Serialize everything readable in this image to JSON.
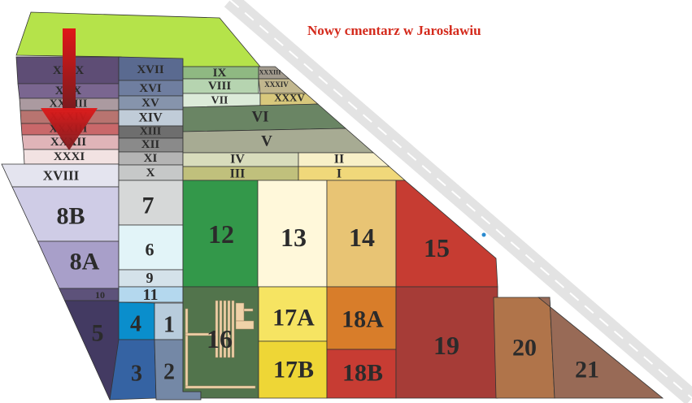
{
  "title": "Nowy cmentarz w Jarosławiu",
  "road_color": "#e3e3e3",
  "arrow_color": "#c41a1a",
  "top_field_color": "#b5e34a",
  "parcels": [
    {
      "id": "XXIX",
      "label": "XXIX",
      "color": "#5e4d75"
    },
    {
      "id": "XXX",
      "label": "XXX",
      "color": "#7a6690"
    },
    {
      "id": "XXVIII",
      "label": "XXVIII",
      "color": "#ab9aa0"
    },
    {
      "id": "XXXIV_l",
      "label": "XXXIV",
      "color": "#b87470"
    },
    {
      "id": "XXXIII_l",
      "label": "XXXIII",
      "color": "#c9686a"
    },
    {
      "id": "XXXII",
      "label": "XXXII",
      "color": "#e0b4b8"
    },
    {
      "id": "XXXI",
      "label": "XXXI",
      "color": "#f2e2e2"
    },
    {
      "id": "XVIII",
      "label": "XVIII",
      "color": "#e4e4ef"
    },
    {
      "id": "XVII",
      "label": "XVII",
      "color": "#5a6a90"
    },
    {
      "id": "XVI",
      "label": "XVI",
      "color": "#6f7ea0"
    },
    {
      "id": "XV",
      "label": "XV",
      "color": "#8694ac"
    },
    {
      "id": "XIV",
      "label": "XIV",
      "color": "#c0ccd8"
    },
    {
      "id": "XIII",
      "label": "XIII",
      "color": "#6e6e6e"
    },
    {
      "id": "XII",
      "label": "XII",
      "color": "#8a8a8a"
    },
    {
      "id": "XI",
      "label": "XI",
      "color": "#b4b4b4"
    },
    {
      "id": "X",
      "label": "X",
      "color": "#c6c8c8"
    },
    {
      "id": "IX",
      "label": "IX",
      "color": "#8fb982"
    },
    {
      "id": "XXXIII",
      "label": "XXXIII",
      "color": "#a29b8e"
    },
    {
      "id": "VIII",
      "label": "VIII",
      "color": "#b6d4b0"
    },
    {
      "id": "XXXIV",
      "label": "XXXIV",
      "color": "#c2b78e"
    },
    {
      "id": "VII",
      "label": "VII",
      "color": "#dcebd9"
    },
    {
      "id": "XXXV",
      "label": "XXXV",
      "color": "#d8c87c"
    },
    {
      "id": "VI",
      "label": "VI",
      "color": "#6a8564"
    },
    {
      "id": "V",
      "label": "V",
      "color": "#a7ab93"
    },
    {
      "id": "IV",
      "label": "IV",
      "color": "#d8dcbc"
    },
    {
      "id": "II",
      "label": "II",
      "color": "#f8f0c8"
    },
    {
      "id": "III",
      "label": "III",
      "color": "#c0c07c"
    },
    {
      "id": "I",
      "label": "I",
      "color": "#f0d87a"
    },
    {
      "id": "8B",
      "label": "8B",
      "color": "#cfcce6"
    },
    {
      "id": "8A",
      "label": "8A",
      "color": "#a89fc9"
    },
    {
      "id": "10",
      "label": "10",
      "color": "#5d527a"
    },
    {
      "id": "5",
      "label": "5",
      "color": "#433a62"
    },
    {
      "id": "7",
      "label": "7",
      "color": "#d6d8d8"
    },
    {
      "id": "6",
      "label": "6",
      "color": "#e2f4f8"
    },
    {
      "id": "9",
      "label": "9",
      "color": "#d4e2ea"
    },
    {
      "id": "11",
      "label": "11",
      "color": "#b4d8ee"
    },
    {
      "id": "4",
      "label": "4",
      "color": "#0a8ecc"
    },
    {
      "id": "1",
      "label": "1",
      "color": "#b8ccdc"
    },
    {
      "id": "3",
      "label": "3",
      "color": "#3563a3"
    },
    {
      "id": "2",
      "label": "2",
      "color": "#7488a6"
    },
    {
      "id": "12",
      "label": "12",
      "color": "#33984a"
    },
    {
      "id": "13",
      "label": "13",
      "color": "#fff8da"
    },
    {
      "id": "14",
      "label": "14",
      "color": "#e8c474"
    },
    {
      "id": "15",
      "label": "15",
      "color": "#c63c32"
    },
    {
      "id": "16",
      "label": "16",
      "color": "#52744c"
    },
    {
      "id": "17A",
      "label": "17A",
      "color": "#f6e462"
    },
    {
      "id": "17B",
      "label": "17B",
      "color": "#eed636"
    },
    {
      "id": "18A",
      "label": "18A",
      "color": "#d87d2a"
    },
    {
      "id": "18B",
      "label": "18B",
      "color": "#c73c33"
    },
    {
      "id": "19",
      "label": "19",
      "color": "#a63c37"
    },
    {
      "id": "20",
      "label": "20",
      "color": "#b0744a"
    },
    {
      "id": "21",
      "label": "21",
      "color": "#986a56"
    }
  ]
}
